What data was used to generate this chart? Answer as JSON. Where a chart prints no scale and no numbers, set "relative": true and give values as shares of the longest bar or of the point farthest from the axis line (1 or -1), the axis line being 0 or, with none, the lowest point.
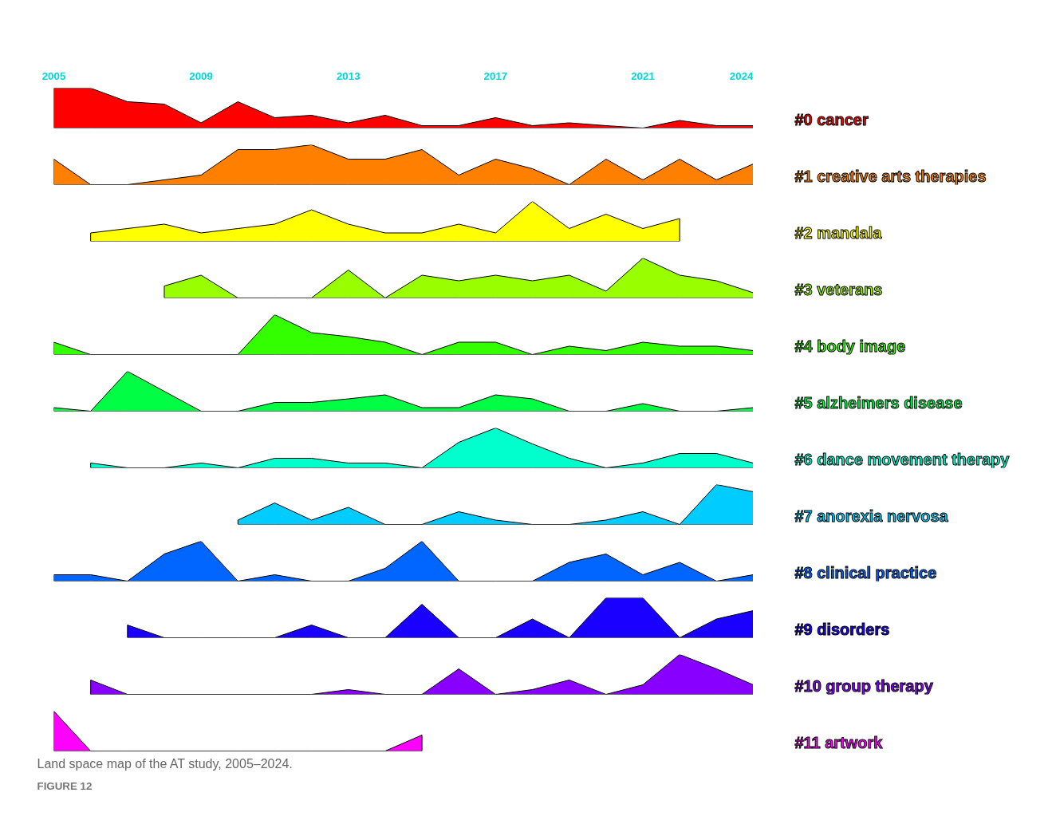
{
  "chart_data": [
    {
      "type": "area",
      "relative": true,
      "xlim": [
        2005,
        2024
      ],
      "xticks": [
        2005,
        2009,
        2013,
        2017,
        2021,
        2024
      ],
      "tick_labels": "x",
      "series": [
        {
          "name": "#0 cancer",
          "color": "#ff0000",
          "x": [
            2005,
            2006,
            2007,
            2008,
            2009,
            2010,
            2011,
            2012,
            2013,
            2014,
            2015,
            2016,
            2017,
            2018,
            2019,
            2020,
            2021,
            2022,
            2023,
            2024
          ],
          "values": [
            1,
            1,
            0.66,
            0.6,
            0.13,
            0.66,
            0.26,
            0.32,
            0.13,
            0.32,
            0.06,
            0.06,
            0.26,
            0.06,
            0.13,
            0.06,
            0,
            0.19,
            0.06,
            0.06
          ]
        }
      ]
    },
    {
      "type": "area",
      "relative": true,
      "xlim": [
        2005,
        2024
      ],
      "tick_labels": false,
      "series": [
        {
          "name": "#1 creative arts therapies",
          "color": "#ff8000",
          "x": [
            2005,
            2006,
            2007,
            2008,
            2009,
            2010,
            2011,
            2012,
            2013,
            2014,
            2015,
            2016,
            2017,
            2018,
            2019,
            2020,
            2021,
            2022,
            2023,
            2024
          ],
          "values": [
            0.64,
            0,
            0,
            0.12,
            0.24,
            0.88,
            0.88,
            1,
            0.64,
            0.64,
            0.88,
            0.24,
            0.64,
            0.4,
            0,
            0.64,
            0.12,
            0.64,
            0.12,
            0.52
          ]
        }
      ]
    },
    {
      "type": "area",
      "relative": true,
      "xlim": [
        2005,
        2024
      ],
      "tick_labels": false,
      "series": [
        {
          "name": "#2 mandala",
          "color": "#ffff00",
          "x": [
            2006,
            2007,
            2008,
            2009,
            2010,
            2011,
            2012,
            2013,
            2014,
            2015,
            2016,
            2017,
            2018,
            2019,
            2020,
            2021,
            2022
          ],
          "values": [
            0.21,
            0.32,
            0.43,
            0.21,
            0.32,
            0.43,
            0.79,
            0.43,
            0.21,
            0.21,
            0.43,
            0.21,
            1,
            0.32,
            0.68,
            0.32,
            0.57
          ]
        }
      ]
    },
    {
      "type": "area",
      "relative": true,
      "xlim": [
        2005,
        2024
      ],
      "tick_labels": false,
      "series": [
        {
          "name": "#3 veterans",
          "color": "#99ff00",
          "x": [
            2008,
            2009,
            2010,
            2011,
            2012,
            2013,
            2014,
            2015,
            2016,
            2017,
            2018,
            2019,
            2020,
            2021,
            2022,
            2023,
            2024
          ],
          "values": [
            0.3,
            0.57,
            0,
            0,
            0,
            0.7,
            0,
            0.57,
            0.43,
            0.57,
            0.43,
            0.57,
            0.17,
            1,
            0.57,
            0.43,
            0.13
          ]
        }
      ]
    },
    {
      "type": "area",
      "relative": true,
      "xlim": [
        2005,
        2024
      ],
      "tick_labels": false,
      "series": [
        {
          "name": "#4 body image",
          "color": "#33ff00",
          "x": [
            2005,
            2006,
            2007,
            2008,
            2009,
            2010,
            2011,
            2012,
            2013,
            2014,
            2015,
            2016,
            2017,
            2018,
            2019,
            2020,
            2021,
            2022,
            2023,
            2024
          ],
          "values": [
            0.31,
            0,
            0,
            0,
            0,
            0,
            1,
            0.55,
            0.45,
            0.31,
            0,
            0.31,
            0.31,
            0,
            0.21,
            0.1,
            0.31,
            0.21,
            0.21,
            0.1
          ]
        }
      ]
    },
    {
      "type": "area",
      "relative": true,
      "xlim": [
        2005,
        2024
      ],
      "tick_labels": false,
      "series": [
        {
          "name": "#5 alzheimers disease",
          "color": "#00ff44",
          "x": [
            2005,
            2006,
            2007,
            2008,
            2009,
            2010,
            2011,
            2012,
            2013,
            2014,
            2015,
            2016,
            2017,
            2018,
            2019,
            2020,
            2021,
            2022,
            2023,
            2024
          ],
          "values": [
            0.09,
            0,
            1,
            0.5,
            0,
            0,
            0.22,
            0.22,
            0.31,
            0.41,
            0.09,
            0.09,
            0.41,
            0.31,
            0,
            0,
            0.19,
            0,
            0,
            0.09
          ]
        }
      ]
    },
    {
      "type": "area",
      "relative": true,
      "xlim": [
        2005,
        2024
      ],
      "tick_labels": false,
      "series": [
        {
          "name": "#6 dance movement therapy",
          "color": "#00ffcc",
          "x": [
            2006,
            2007,
            2008,
            2009,
            2010,
            2011,
            2012,
            2013,
            2014,
            2015,
            2016,
            2017,
            2018,
            2019,
            2020,
            2021,
            2022,
            2023,
            2024
          ],
          "values": [
            0.12,
            0,
            0,
            0.12,
            0,
            0.24,
            0.24,
            0.12,
            0.12,
            0,
            0.64,
            1,
            0.6,
            0.24,
            0,
            0.12,
            0.36,
            0.36,
            0.12
          ]
        }
      ]
    },
    {
      "type": "area",
      "relative": true,
      "xlim": [
        2005,
        2024
      ],
      "tick_labels": false,
      "series": [
        {
          "name": "#7 anorexia nervosa",
          "color": "#00ccff",
          "x": [
            2010,
            2011,
            2012,
            2013,
            2014,
            2015,
            2016,
            2017,
            2018,
            2019,
            2020,
            2021,
            2022,
            2023,
            2024
          ],
          "values": [
            0.11,
            0.54,
            0.11,
            0.43,
            0,
            0,
            0.32,
            0.11,
            0,
            0,
            0.11,
            0.32,
            0,
            1,
            0.82
          ]
        }
      ]
    },
    {
      "type": "area",
      "relative": true,
      "xlim": [
        2005,
        2024
      ],
      "tick_labels": false,
      "series": [
        {
          "name": "#8 clinical practice",
          "color": "#0066ff",
          "x": [
            2005,
            2006,
            2007,
            2008,
            2009,
            2010,
            2011,
            2012,
            2013,
            2014,
            2015,
            2016,
            2017,
            2018,
            2019,
            2020,
            2021,
            2022,
            2023,
            2024
          ],
          "values": [
            0.16,
            0.16,
            0,
            0.68,
            1,
            0,
            0.16,
            0,
            0,
            0.32,
            1,
            0,
            0,
            0,
            0.47,
            0.68,
            0.16,
            0.47,
            0,
            0.16
          ]
        }
      ]
    },
    {
      "type": "area",
      "relative": true,
      "xlim": [
        2005,
        2024
      ],
      "tick_labels": false,
      "series": [
        {
          "name": "#9 disorders",
          "color": "#1a00ff",
          "x": [
            2007,
            2008,
            2009,
            2010,
            2011,
            2012,
            2013,
            2014,
            2015,
            2016,
            2017,
            2018,
            2019,
            2020,
            2021,
            2022,
            2023,
            2024
          ],
          "values": [
            0.32,
            0,
            0,
            0,
            0,
            0.32,
            0,
            0,
            0.84,
            0,
            0,
            0.47,
            0,
            1,
            1,
            0,
            0.47,
            0.68
          ]
        }
      ]
    },
    {
      "type": "area",
      "relative": true,
      "xlim": [
        2005,
        2024
      ],
      "tick_labels": false,
      "series": [
        {
          "name": "#10 group therapy",
          "color": "#8800ff",
          "x": [
            2006,
            2007,
            2008,
            2009,
            2010,
            2011,
            2012,
            2013,
            2014,
            2015,
            2016,
            2017,
            2018,
            2019,
            2020,
            2021,
            2022,
            2023,
            2024
          ],
          "values": [
            0.36,
            0,
            0,
            0,
            0,
            0,
            0,
            0.12,
            0,
            0,
            0.64,
            0,
            0.12,
            0.36,
            0,
            0.24,
            1,
            0.64,
            0.24
          ]
        }
      ]
    },
    {
      "type": "area",
      "relative": true,
      "xlim": [
        2005,
        2024
      ],
      "tick_labels": false,
      "series": [
        {
          "name": "#11 artwork",
          "color": "#ff00ff",
          "x": [
            2005,
            2006,
            2007,
            2008,
            2009,
            2010,
            2011,
            2012,
            2013,
            2014,
            2015
          ],
          "values": [
            1,
            0,
            0,
            0,
            0,
            0,
            0,
            0,
            0,
            0,
            0.4
          ]
        }
      ],
      "annotations": [
        "FIGURE 12",
        "Land space map of the AT study, 2005–2024."
      ]
    }
  ]
}
